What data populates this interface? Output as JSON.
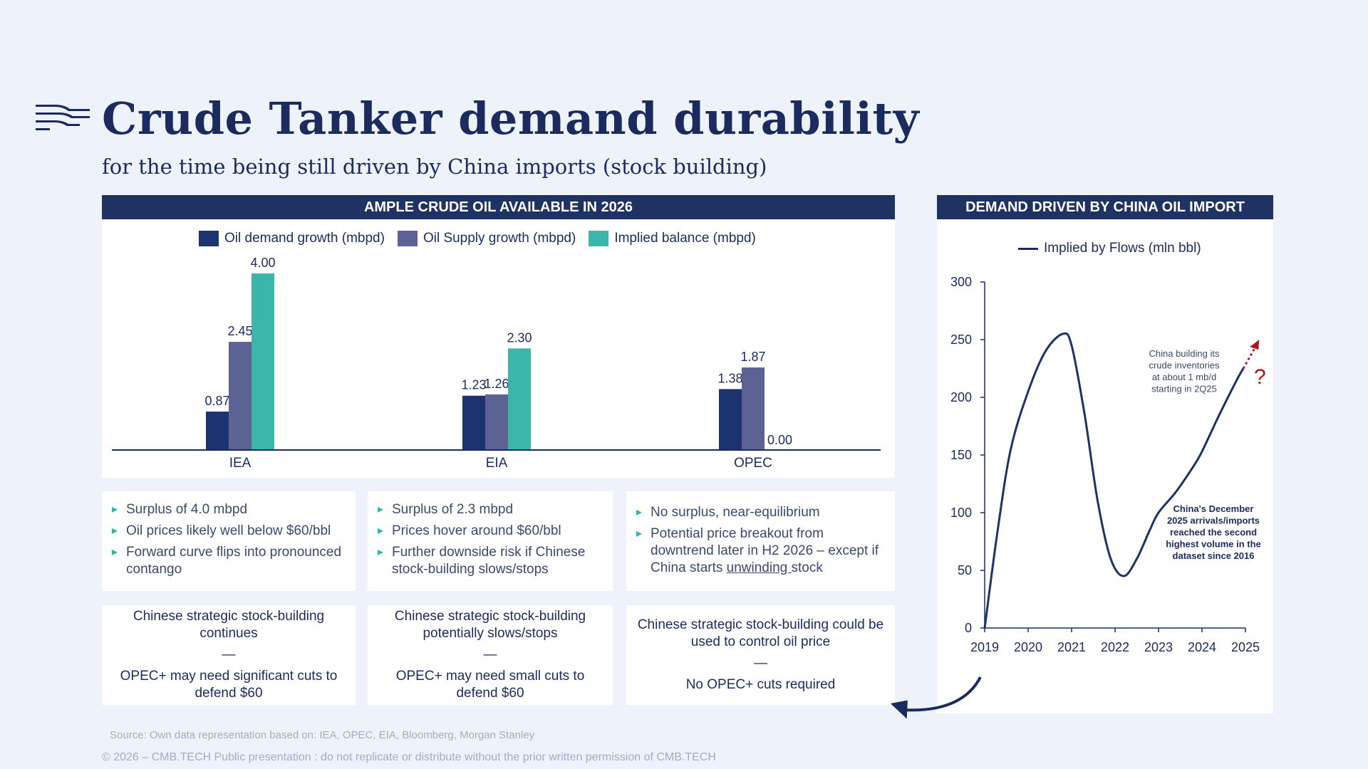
{
  "header": {
    "title": "Crude Tanker demand durability",
    "subtitle": "for the time being still driven by China imports (stock building)",
    "logo_icon": "wave-stripes-logo-icon"
  },
  "left_panel": {
    "title": "AMPLE CRUDE OIL AVAILABLE IN 2026"
  },
  "right_panel": {
    "title": "DEMAND DRIVEN BY CHINA OIL IMPORT"
  },
  "colors": {
    "navy": "#1f3264",
    "demand": "#1d336f",
    "supply": "#5d6294",
    "balance": "#3ab7a8",
    "red": "#b3151b"
  },
  "chart_data": [
    {
      "type": "bar",
      "title": "AMPLE CRUDE OIL AVAILABLE IN 2026",
      "categories": [
        "IEA",
        "EIA",
        "OPEC"
      ],
      "series": [
        {
          "name": "Oil demand growth (mbpd)",
          "values": [
            0.87,
            1.23,
            1.38
          ],
          "labels": [
            "0.87",
            "1.23",
            "1.38"
          ]
        },
        {
          "name": "Oil Supply growth (mbpd)",
          "values": [
            2.45,
            1.26,
            1.87
          ],
          "labels": [
            "2.45",
            "1.26",
            "1.87"
          ]
        },
        {
          "name": "Implied balance (mbpd)",
          "values": [
            4.0,
            2.3,
            0.0
          ],
          "labels": [
            "4.00",
            "2.30",
            "0.00"
          ]
        }
      ],
      "ylim": [
        0,
        4
      ],
      "legend": "top-center",
      "grid": false
    },
    {
      "type": "line",
      "title": "DEMAND DRIVEN BY CHINA OIL IMPORT",
      "series": [
        {
          "name": "Implied by Flows (mln bbl)",
          "x": [
            2019.0,
            2019.3,
            2019.6,
            2020.0,
            2020.4,
            2020.8,
            2021.0,
            2021.3,
            2021.6,
            2021.9,
            2022.2,
            2022.5,
            2022.8,
            2023.0,
            2023.4,
            2023.8,
            2024.0,
            2024.4,
            2024.8,
            2024.95
          ],
          "values": [
            0,
            85,
            155,
            205,
            240,
            255,
            245,
            185,
            110,
            60,
            45,
            60,
            85,
            100,
            118,
            140,
            153,
            185,
            215,
            225
          ]
        }
      ],
      "xticks": [
        "2019",
        "2020",
        "2021",
        "2022",
        "2023",
        "2024",
        "2025"
      ],
      "yticks": [
        "0",
        "50",
        "100",
        "150",
        "200",
        "250",
        "300"
      ],
      "xlim": [
        2019,
        2025
      ],
      "ylim": [
        0,
        300
      ],
      "legend": "top-center",
      "annotations": {
        "top": [
          "China building its",
          "crude inventories",
          "at about 1 mb/d",
          "starting in 2Q25"
        ],
        "bottom": [
          "China's December",
          "2025 arrivals/imports",
          "reached the second",
          "highest volume in the",
          "dataset since 2016"
        ],
        "question": "?"
      }
    }
  ],
  "scenarios": [
    {
      "bullets": [
        "Surplus of 4.0 mbpd",
        "Oil prices likely well below $60/bbl",
        "Forward curve flips into pronounced contango"
      ],
      "conclusion_top": "Chinese strategic stock-building continues",
      "dash": "—",
      "conclusion_bottom": "OPEC+ may need significant cuts to defend $60"
    },
    {
      "bullets": [
        "Surplus of 2.3 mbpd",
        "Prices hover around $60/bbl",
        "Further downside risk if Chinese stock-building slows/stops"
      ],
      "conclusion_top": "Chinese strategic stock-building potentially slows/stops",
      "dash": "—",
      "conclusion_bottom": "OPEC+ may need small cuts to defend $60"
    },
    {
      "bullets": [
        "No surplus, near-equilibrium"
      ],
      "bullet2_pre": "Potential price breakout from downtrend later in H2 2026 – except if China starts ",
      "bullet2_u": "unwinding ",
      "bullet2_post": "stock",
      "conclusion_top": "Chinese strategic stock-building could be used to control oil price",
      "dash": "—",
      "conclusion_bottom": "No OPEC+ cuts required"
    }
  ],
  "footer": {
    "source": "Source:  Own data representation based on: IEA, OPEC, EIA, Bloomberg, Morgan Stanley",
    "copyright": "© 2026 – CMB.TECH Public presentation : do not replicate or distribute without the prior written permission of CMB.TECH"
  }
}
